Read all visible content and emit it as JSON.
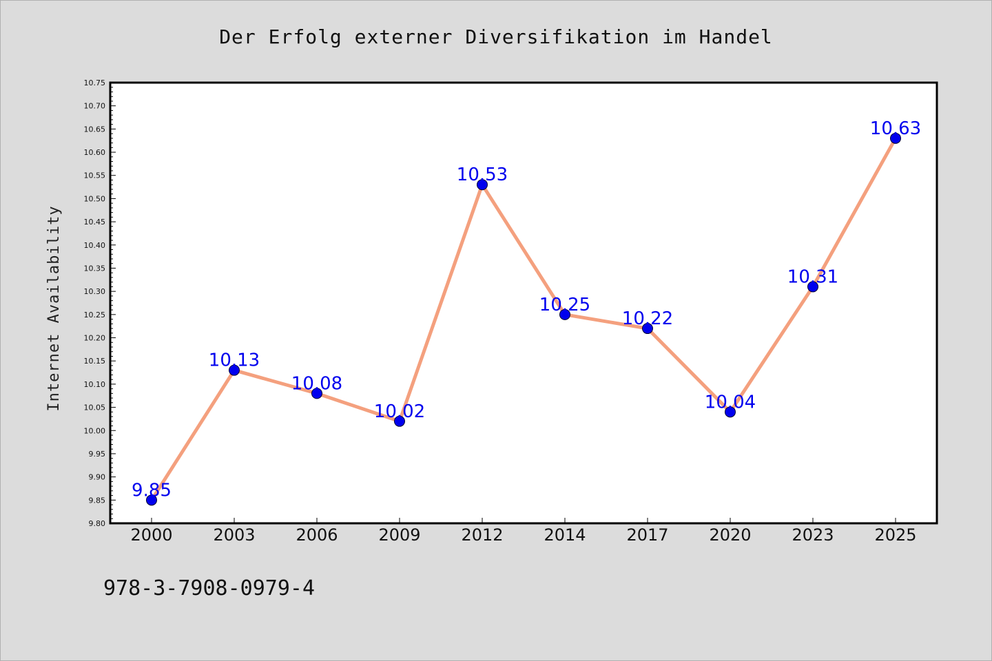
{
  "chart_data": {
    "type": "line",
    "title": "Der Erfolg externer Diversifikation im Handel",
    "ylabel": "Internet Availability",
    "xlabel": "",
    "categories": [
      "2000",
      "2003",
      "2006",
      "2009",
      "2012",
      "2014",
      "2017",
      "2020",
      "2023",
      "2025"
    ],
    "series": [
      {
        "values": [
          9.85,
          10.13,
          10.08,
          10.02,
          10.53,
          10.25,
          10.22,
          10.04,
          10.31,
          10.63
        ]
      }
    ],
    "data_labels": [
      "9.85",
      "10.13",
      "10.08",
      "10.02",
      "10.53",
      "10.25",
      "10.22",
      "10.04",
      "10.31",
      "10.63"
    ],
    "ylim": [
      9.8,
      10.75
    ],
    "yticks": [
      "9.80",
      "9.85",
      "9.90",
      "9.95",
      "10.00",
      "10.05",
      "10.10",
      "10.15",
      "10.20",
      "10.25",
      "10.30",
      "10.35",
      "10.40",
      "10.45",
      "10.50",
      "10.55",
      "10.60",
      "10.65",
      "10.70",
      "10.75"
    ],
    "grid": false,
    "legend": "none",
    "colors": {
      "line": "#f4a07e",
      "marker": "#0000ee",
      "data_label": "#0000ee",
      "background": "#dcdcdc",
      "plot_background": "#ffffff"
    }
  },
  "footer": {
    "isbn": "978-3-7908-0979-4"
  }
}
